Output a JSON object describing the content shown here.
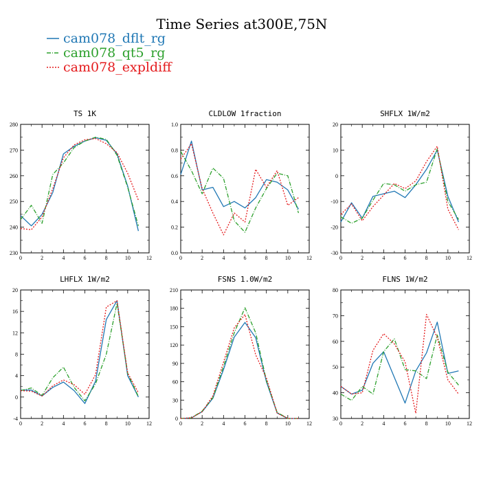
{
  "title": "Time Series at300E,75N",
  "legend": [
    {
      "label": "cam078_dflt_rg",
      "color": "#1f77b4",
      "dash": "solid"
    },
    {
      "label": "cam078_qt5_rg",
      "color": "#2ca02c",
      "dash": "dashdot"
    },
    {
      "label": "cam078_expldiff",
      "color": "#e41a1c",
      "dash": "dotted"
    }
  ],
  "chart_data": [
    {
      "type": "line",
      "title": "TS   1K",
      "x": [
        0,
        1,
        2,
        3,
        4,
        5,
        6,
        7,
        8,
        9,
        10,
        11
      ],
      "xlim": [
        0,
        12
      ],
      "xticks": [
        0,
        2,
        4,
        6,
        8,
        10,
        12
      ],
      "ylim": [
        230,
        280
      ],
      "yticks": [
        230,
        240,
        250,
        260,
        270,
        280
      ],
      "series": [
        {
          "name": "cam078_dflt_rg",
          "values": [
            244.5,
            240.5,
            245,
            253.5,
            268.5,
            271.5,
            273.5,
            274.8,
            273.8,
            268.5,
            256,
            238.5
          ]
        },
        {
          "name": "cam078_qt5_rg",
          "values": [
            243,
            248.5,
            241.5,
            260.5,
            265,
            271,
            273.5,
            275,
            274.2,
            268,
            255.5,
            240.5
          ]
        },
        {
          "name": "cam078_expldiff",
          "values": [
            239.5,
            239,
            244,
            255,
            267,
            272,
            274,
            274.5,
            272.5,
            269,
            261,
            250.5
          ]
        }
      ]
    },
    {
      "type": "line",
      "title": "CLDLOW   1fraction",
      "x": [
        0,
        1,
        2,
        3,
        4,
        5,
        6,
        7,
        8,
        9,
        10,
        11
      ],
      "xlim": [
        0,
        12
      ],
      "xticks": [
        0,
        2,
        4,
        6,
        8,
        10,
        12
      ],
      "ylim": [
        0,
        1
      ],
      "yticks": [
        0.0,
        0.2,
        0.4,
        0.6,
        0.8,
        1.0
      ],
      "series": [
        {
          "name": "cam078_dflt_rg",
          "values": [
            0.61,
            0.87,
            0.49,
            0.51,
            0.36,
            0.4,
            0.35,
            0.43,
            0.57,
            0.55,
            0.49,
            0.34
          ]
        },
        {
          "name": "cam078_qt5_rg",
          "values": [
            0.79,
            0.64,
            0.46,
            0.66,
            0.58,
            0.25,
            0.16,
            0.35,
            0.5,
            0.62,
            0.6,
            0.31
          ]
        },
        {
          "name": "cam078_expldiff",
          "values": [
            0.73,
            0.85,
            0.5,
            0.31,
            0.14,
            0.31,
            0.24,
            0.65,
            0.51,
            0.64,
            0.37,
            0.43
          ]
        }
      ]
    },
    {
      "type": "line",
      "title": "SHFLX   1W/m2",
      "x": [
        0,
        1,
        2,
        3,
        4,
        5,
        6,
        7,
        8,
        9,
        10,
        11
      ],
      "xlim": [
        0,
        12
      ],
      "xticks": [
        0,
        2,
        4,
        6,
        8,
        10,
        12
      ],
      "ylim": [
        -30,
        20
      ],
      "yticks": [
        -30,
        -20,
        -10,
        0,
        10,
        20
      ],
      "series": [
        {
          "name": "cam078_dflt_rg",
          "values": [
            -18,
            -10.5,
            -16.5,
            -8,
            -7,
            -6,
            -8.5,
            -3.5,
            2.5,
            10,
            -8,
            -18
          ]
        },
        {
          "name": "cam078_qt5_rg",
          "values": [
            -16,
            -18.5,
            -16.5,
            -9.5,
            -3,
            -3.5,
            -6,
            -3.5,
            -2.5,
            10.5,
            -10,
            -17
          ]
        },
        {
          "name": "cam078_expldiff",
          "values": [
            -15,
            -11,
            -17.5,
            -12,
            -7.5,
            -3,
            -5,
            -2,
            5.5,
            11.5,
            -13,
            -21
          ]
        }
      ]
    },
    {
      "type": "line",
      "title": "LHFLX   1W/m2",
      "x": [
        0,
        1,
        2,
        3,
        4,
        5,
        6,
        7,
        8,
        9,
        10,
        11
      ],
      "xlim": [
        0,
        12
      ],
      "xticks": [
        0,
        2,
        4,
        6,
        8,
        10,
        12
      ],
      "ylim": [
        -4,
        20
      ],
      "yticks": [
        -4,
        0,
        4,
        8,
        12,
        16,
        20
      ],
      "series": [
        {
          "name": "cam078_dflt_rg",
          "values": [
            1.3,
            1.3,
            0.2,
            1.8,
            2.8,
            1.2,
            -1.2,
            3,
            14.5,
            18,
            4,
            0
          ]
        },
        {
          "name": "cam078_qt5_rg",
          "values": [
            1.2,
            1.7,
            0.3,
            3.6,
            5.6,
            1.8,
            -0.7,
            2.5,
            8,
            17.5,
            4.4,
            0.1
          ]
        },
        {
          "name": "cam078_expldiff",
          "values": [
            1.2,
            1.1,
            0.2,
            2.1,
            3.2,
            2.3,
            0.5,
            4.2,
            16.8,
            18,
            4.5,
            0.8
          ]
        }
      ]
    },
    {
      "type": "line",
      "title": "FSNS   1.0W/m2",
      "x": [
        0,
        1,
        2,
        3,
        4,
        5,
        6,
        7,
        8,
        9,
        10,
        11
      ],
      "xlim": [
        0,
        12
      ],
      "xticks": [
        0,
        2,
        4,
        6,
        8,
        10,
        12
      ],
      "ylim": [
        0,
        210
      ],
      "yticks": [
        0,
        30,
        60,
        90,
        120,
        150,
        180,
        210
      ],
      "series": [
        {
          "name": "cam078_dflt_rg",
          "values": [
            0,
            1,
            11,
            33,
            80,
            133,
            157,
            132,
            60,
            9,
            0,
            0
          ]
        },
        {
          "name": "cam078_qt5_rg",
          "values": [
            0,
            1,
            12,
            34,
            85,
            140,
            181,
            140,
            62,
            10,
            0,
            0
          ]
        },
        {
          "name": "cam078_expldiff",
          "values": [
            0,
            1,
            11,
            37,
            92,
            148,
            170,
            104,
            66,
            9,
            0,
            0
          ]
        }
      ]
    },
    {
      "type": "line",
      "title": "FLNS   1W/m2",
      "x": [
        0,
        1,
        2,
        3,
        4,
        5,
        6,
        7,
        8,
        9,
        10,
        11
      ],
      "xlim": [
        0,
        12
      ],
      "xticks": [
        0,
        2,
        4,
        6,
        8,
        10,
        12
      ],
      "ylim": [
        30,
        80
      ],
      "yticks": [
        30,
        40,
        50,
        60,
        70,
        80
      ],
      "series": [
        {
          "name": "cam078_dflt_rg",
          "values": [
            42.5,
            39.5,
            41,
            51.5,
            56,
            46,
            36,
            48.5,
            55.5,
            67.5,
            47.5,
            48.5
          ]
        },
        {
          "name": "cam078_qt5_rg",
          "values": [
            39.5,
            37,
            42.5,
            39.5,
            56,
            61,
            49,
            48.5,
            45.5,
            62.5,
            48,
            43
          ]
        },
        {
          "name": "cam078_expldiff",
          "values": [
            42.5,
            39.5,
            40,
            56.5,
            63,
            59,
            52,
            32,
            70.5,
            61.5,
            45,
            39.5
          ]
        }
      ]
    }
  ]
}
